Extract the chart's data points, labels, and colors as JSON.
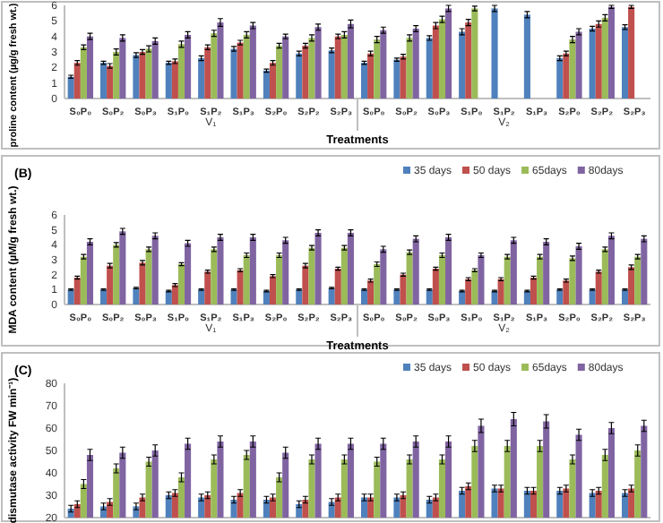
{
  "chart_data": [
    {
      "type": "bar",
      "ylabel": "proline content (µg/g fresh wt.)",
      "xlabel": "Treatments",
      "categories": [
        "S₀P₀",
        "S₀P₂",
        "S₀P₃",
        "S₁P₀",
        "S₁P₂",
        "S₁P₃",
        "S₂P₀",
        "S₂P₂",
        "S₂P₃",
        "S₀P₀",
        "S₀P₂",
        "S₀P₃",
        "S₁P₀",
        "S₁P₂",
        "S₁P₃",
        "S₂P₀",
        "S₂P₂",
        "S₂P₃"
      ],
      "annotations": [
        "V₁",
        "V₂"
      ],
      "ylim": [
        0,
        6
      ],
      "yticks": [
        0,
        1,
        2,
        3,
        4,
        5,
        6
      ],
      "legend": false,
      "series": [
        {
          "color": "#4f81bd",
          "values": [
            1.4,
            2.3,
            2.8,
            2.3,
            2.6,
            3.2,
            1.8,
            2.9,
            3.1,
            2.3,
            2.5,
            3.9,
            4.3,
            5.8,
            5.4,
            2.6,
            4.5,
            4.6
          ],
          "errors": [
            0.1,
            0.1,
            0.15,
            0.1,
            0.15,
            0.15,
            0.1,
            0.15,
            0.15,
            0.1,
            0.1,
            0.15,
            0.2,
            0.2,
            0.2,
            0.15,
            0.15,
            0.15
          ]
        },
        {
          "color": "#c0504d",
          "values": [
            2.3,
            2.1,
            3.0,
            2.4,
            3.3,
            3.6,
            2.3,
            3.4,
            4.0,
            2.9,
            2.7,
            4.7,
            4.9,
            null,
            null,
            2.9,
            4.8,
            5.9
          ],
          "errors": [
            0.15,
            0.15,
            0.15,
            0.15,
            0.15,
            0.15,
            0.15,
            0.15,
            0.15,
            0.15,
            0.15,
            0.2,
            0.2,
            null,
            null,
            0.15,
            0.2,
            0.1
          ]
        },
        {
          "color": "#9bbb59",
          "values": [
            3.3,
            3.0,
            3.2,
            3.5,
            4.2,
            4.1,
            3.4,
            3.9,
            4.1,
            3.8,
            3.9,
            5.1,
            5.8,
            null,
            null,
            3.8,
            5.2,
            null
          ],
          "errors": [
            0.15,
            0.2,
            0.2,
            0.2,
            0.2,
            0.2,
            0.15,
            0.2,
            0.2,
            0.2,
            0.2,
            0.2,
            0.15,
            null,
            null,
            0.2,
            0.2,
            null
          ]
        },
        {
          "color": "#8064a2",
          "values": [
            4.0,
            3.9,
            3.7,
            4.1,
            4.9,
            4.7,
            4.0,
            4.6,
            4.8,
            4.4,
            4.5,
            5.8,
            null,
            null,
            null,
            4.3,
            5.9,
            null
          ],
          "errors": [
            0.2,
            0.2,
            0.2,
            0.2,
            0.25,
            0.2,
            0.15,
            0.2,
            0.25,
            0.2,
            0.2,
            0.2,
            null,
            null,
            null,
            0.2,
            0.1,
            null
          ]
        }
      ]
    },
    {
      "type": "bar",
      "title": "(B)",
      "ylabel": "MDA content (µM/g fresh wt.)",
      "xlabel": "Treatments",
      "categories": [
        "S₀P₀",
        "S₀P₂",
        "S₀P₃",
        "S₁P₀",
        "S₁P₂",
        "S₁P₃",
        "S₂P₀",
        "S₂P₂",
        "S₂P₃",
        "S₀P₀",
        "S₀P₂",
        "S₀P₃",
        "S₁P₀",
        "S₁P₂",
        "S₁P₃",
        "S₂P₀",
        "S₂P₂",
        "S₂P₃"
      ],
      "annotations": [
        "V₁",
        "V₂"
      ],
      "ylim": [
        0,
        6
      ],
      "yticks": [
        0,
        1,
        2,
        3,
        4,
        5,
        6
      ],
      "legend": "top right",
      "series": [
        {
          "name": "35 days",
          "color": "#4f81bd",
          "values": [
            1.0,
            1.0,
            1.1,
            0.9,
            1.0,
            1.0,
            0.9,
            1.0,
            1.1,
            1.0,
            1.0,
            1.0,
            0.9,
            0.9,
            0.9,
            1.0,
            1.0,
            1.0
          ],
          "errors": [
            0.05,
            0.05,
            0.05,
            0.05,
            0.05,
            0.05,
            0.05,
            0.05,
            0.05,
            0.05,
            0.05,
            0.05,
            0.05,
            0.05,
            0.05,
            0.05,
            0.05,
            0.05
          ]
        },
        {
          "name": "50 days",
          "color": "#c0504d",
          "values": [
            1.8,
            2.6,
            2.8,
            1.3,
            2.2,
            2.3,
            1.9,
            2.6,
            2.4,
            1.6,
            2.0,
            2.4,
            1.7,
            1.7,
            1.8,
            1.6,
            2.2,
            2.5
          ],
          "errors": [
            0.1,
            0.15,
            0.15,
            0.1,
            0.1,
            0.1,
            0.1,
            0.15,
            0.1,
            0.1,
            0.1,
            0.1,
            0.1,
            0.1,
            0.1,
            0.1,
            0.1,
            0.15
          ]
        },
        {
          "name": "65days",
          "color": "#9bbb59",
          "values": [
            3.2,
            4.0,
            3.7,
            2.7,
            3.7,
            3.3,
            3.3,
            3.8,
            3.8,
            2.7,
            3.5,
            3.3,
            2.3,
            3.2,
            3.2,
            3.1,
            3.7,
            3.2
          ],
          "errors": [
            0.15,
            0.15,
            0.15,
            0.1,
            0.15,
            0.15,
            0.15,
            0.15,
            0.15,
            0.15,
            0.15,
            0.15,
            0.1,
            0.15,
            0.15,
            0.15,
            0.15,
            0.15
          ]
        },
        {
          "name": "80days",
          "color": "#8064a2",
          "values": [
            4.2,
            4.9,
            4.6,
            4.1,
            4.5,
            4.5,
            4.3,
            4.8,
            4.8,
            3.7,
            4.4,
            4.5,
            3.3,
            4.3,
            4.2,
            3.9,
            4.6,
            4.4
          ],
          "errors": [
            0.2,
            0.2,
            0.2,
            0.2,
            0.2,
            0.2,
            0.2,
            0.2,
            0.2,
            0.2,
            0.2,
            0.2,
            0.15,
            0.2,
            0.2,
            0.2,
            0.2,
            0.2
          ]
        }
      ]
    },
    {
      "type": "bar",
      "title": "(C)",
      "ylabel": "dismutase activity FW min⁻¹)",
      "categories": [
        null,
        null,
        null,
        null,
        null,
        null,
        null,
        null,
        null,
        null,
        null,
        null,
        null,
        null,
        null,
        null,
        null,
        null
      ],
      "ylim": [
        20,
        80
      ],
      "yticks": [
        20,
        30,
        40,
        50,
        60,
        70,
        80
      ],
      "legend": "top right",
      "tick_labels": "y",
      "series": [
        {
          "name": "35 days",
          "color": "#4f81bd",
          "values": [
            24,
            25,
            25,
            30,
            29,
            28,
            28,
            26,
            27,
            29,
            29,
            28,
            32,
            33,
            32,
            32,
            31,
            31
          ],
          "errors": [
            1.5,
            1.5,
            1.5,
            1.5,
            1.5,
            1.5,
            1.5,
            1.5,
            1.5,
            1.5,
            1.5,
            1.5,
            1.5,
            1.5,
            1.5,
            1.5,
            1.5,
            1.5
          ]
        },
        {
          "name": "50 days",
          "color": "#c0504d",
          "values": [
            26,
            27,
            29,
            31,
            30,
            31,
            29,
            28,
            29,
            29,
            30,
            29,
            34,
            33,
            32,
            33,
            32,
            33
          ],
          "errors": [
            1.5,
            1.5,
            1.5,
            1.5,
            1.5,
            1.5,
            1.5,
            1.5,
            1.5,
            1.5,
            1.5,
            1.5,
            1.5,
            1.5,
            1.5,
            1.5,
            1.5,
            1.5
          ]
        },
        {
          "name": "65days",
          "color": "#9bbb59",
          "values": [
            35,
            42,
            45,
            38,
            46,
            48,
            38,
            46,
            46,
            45,
            46,
            46,
            52,
            52,
            52,
            46,
            48,
            50
          ],
          "errors": [
            2,
            2,
            2,
            2,
            2,
            2,
            2,
            2,
            2,
            2,
            2,
            2,
            2.5,
            2.5,
            2.5,
            2,
            2.5,
            2.5
          ]
        },
        {
          "name": "80days",
          "color": "#8064a2",
          "values": [
            48,
            49,
            50,
            53,
            54,
            54,
            49,
            53,
            53,
            53,
            54,
            54,
            61,
            64,
            63,
            57,
            60,
            61
          ],
          "errors": [
            2.5,
            2.5,
            2.5,
            2.5,
            2.5,
            2.5,
            2.5,
            2.5,
            2.5,
            2.5,
            2.5,
            2.5,
            3,
            3,
            3,
            2.5,
            2.5,
            2.5
          ]
        }
      ]
    }
  ]
}
